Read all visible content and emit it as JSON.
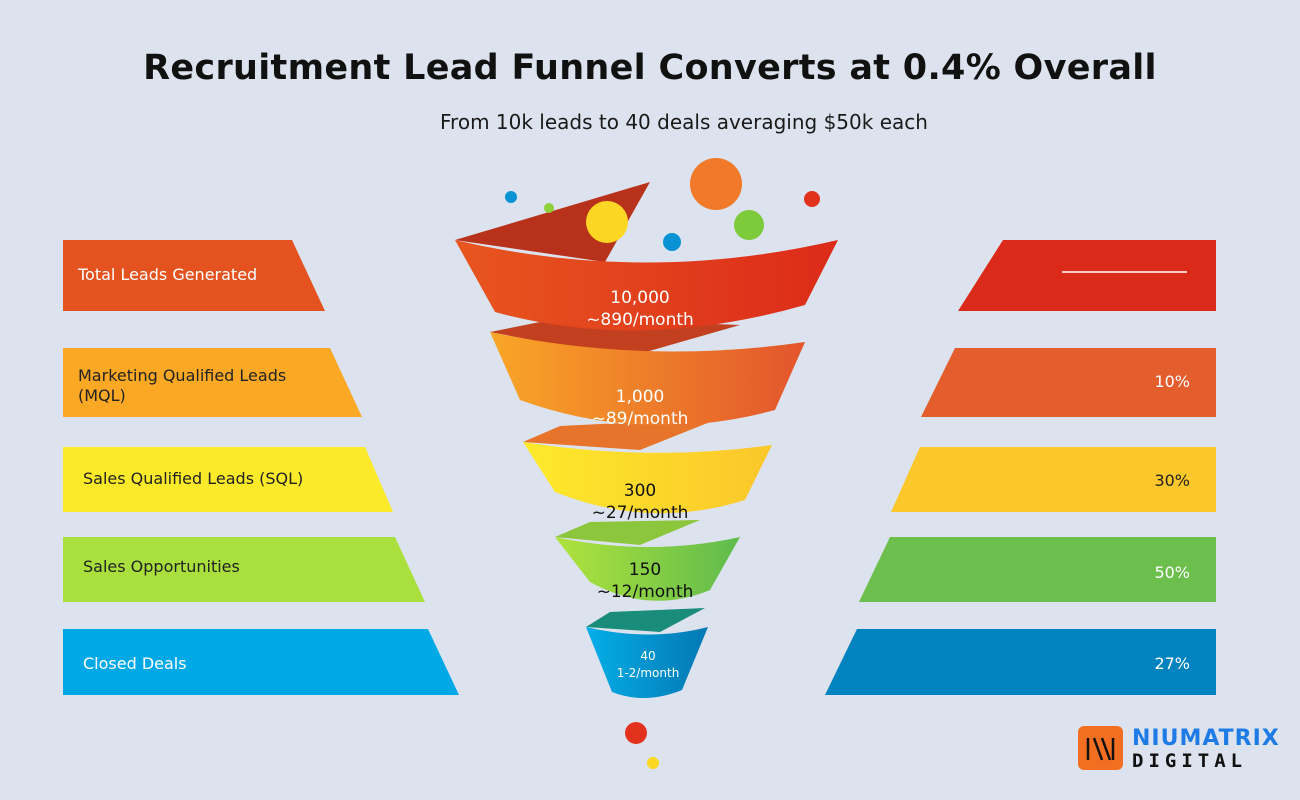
{
  "title": "Recruitment Lead Funnel Converts at 0.4% Overall",
  "subtitle": "From 10k leads to 40 deals averaging $50k each",
  "stages": [
    {
      "label": "Total Leads Generated",
      "count": "10,000",
      "rate": "~890/month",
      "conversion": "",
      "color": "#e4521f",
      "right_color": "#dc2a1a",
      "text_color": "#ffffff"
    },
    {
      "label": "Marketing Qualified Leads (MQL)",
      "count": "1,000",
      "rate": "~89/month",
      "conversion": "10%",
      "color": "#fba824",
      "right_color": "#e45d2d",
      "text_color": "#222222"
    },
    {
      "label": "Sales Qualified Leads (SQL)",
      "count": "300",
      "rate": "~27/month",
      "conversion": "30%",
      "color": "#fbea2a",
      "right_color": "#fbc72b",
      "text_color": "#222222"
    },
    {
      "label": "Sales Opportunities",
      "count": "150",
      "rate": "~12/month",
      "conversion": "50%",
      "color": "#a9e03d",
      "right_color": "#6cbf4c",
      "text_color": "#222222"
    },
    {
      "label": "Closed Deals",
      "count": "40",
      "rate": "1-2/month",
      "conversion": "27%",
      "color": "#00a9e6",
      "right_color": "#0083bf",
      "text_color": "#ffffff"
    }
  ],
  "logo": {
    "line1": "NIUMATRIX",
    "line2": "DIGITAL"
  }
}
